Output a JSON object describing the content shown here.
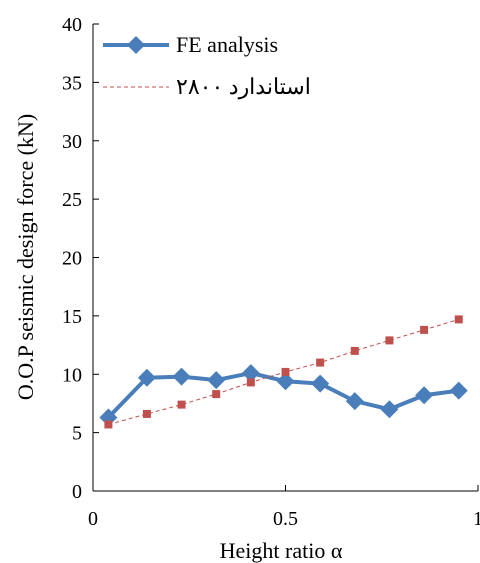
{
  "chart_data": {
    "type": "line",
    "xlabel": "Height ratio α",
    "ylabel": "O.O.P seismic design force (kN)",
    "xlim": [
      0,
      1
    ],
    "ylim": [
      0,
      40
    ],
    "x_ticks": [
      "0",
      "0.5",
      "1"
    ],
    "y_ticks": [
      "0",
      "5",
      "10",
      "15",
      "20",
      "25",
      "30",
      "35",
      "40"
    ],
    "grid": false,
    "legend_position": "top-left",
    "series": [
      {
        "name": "FE analysis",
        "color": "#4a7ebb",
        "marker": "diamond",
        "line_style": "solid",
        "x": [
          0.04,
          0.14,
          0.23,
          0.32,
          0.41,
          0.5,
          0.59,
          0.68,
          0.77,
          0.86,
          0.95
        ],
        "y": [
          6.3,
          9.7,
          9.8,
          9.5,
          10.1,
          9.4,
          9.2,
          7.7,
          7.0,
          8.2,
          8.6
        ]
      },
      {
        "name": "استاندارد ۲۸۰۰",
        "color": "#c0504d",
        "marker": "square",
        "line_style": "dashed",
        "x": [
          0.04,
          0.14,
          0.23,
          0.32,
          0.41,
          0.5,
          0.59,
          0.68,
          0.77,
          0.86,
          0.95
        ],
        "y": [
          5.7,
          6.6,
          7.4,
          8.3,
          9.3,
          10.2,
          11.0,
          12.0,
          12.9,
          13.8,
          14.7
        ]
      }
    ]
  }
}
